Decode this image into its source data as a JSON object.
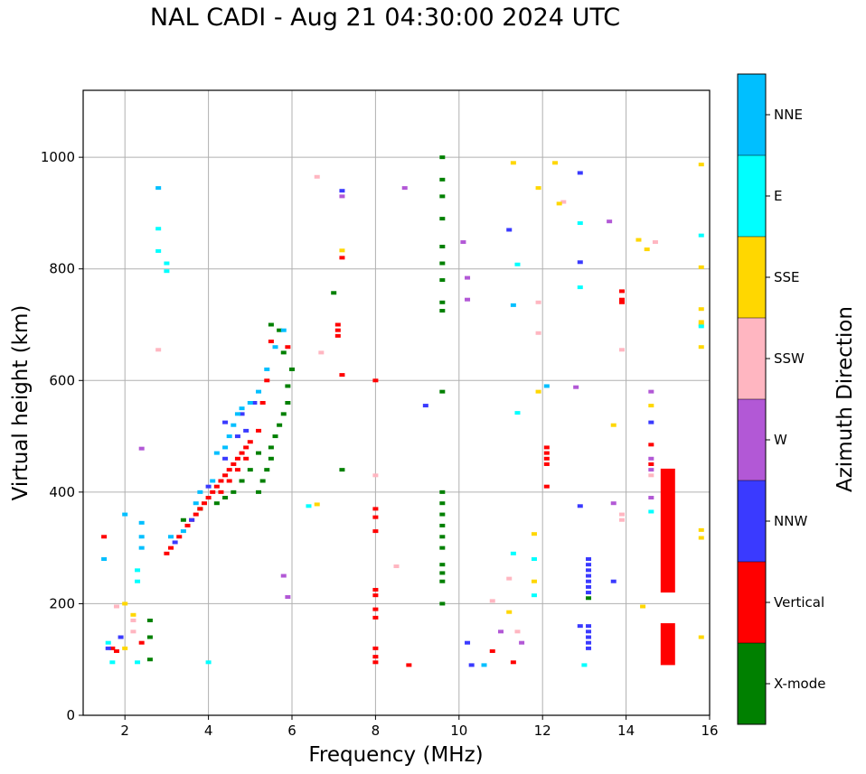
{
  "chart_data": {
    "type": "scatter",
    "title": "NAL CADI - Aug 21 04:30:00 2024 UTC",
    "xlabel": "Frequency (MHz)",
    "ylabel": "Virtual height (km)",
    "xlim": [
      1,
      16
    ],
    "ylim": [
      0,
      1120
    ],
    "xticks": [
      2,
      4,
      6,
      8,
      10,
      12,
      14,
      16
    ],
    "yticks": [
      0,
      200,
      400,
      600,
      800,
      1000
    ],
    "grid": true,
    "colorbar": {
      "label": "Azimuth Direction",
      "categories": [
        "X-mode",
        "Vertical",
        "NNW",
        "W",
        "SSW",
        "SSE",
        "E",
        "NNE"
      ],
      "colors": [
        "#008000",
        "#ff0000",
        "#3a3aff",
        "#b258d6",
        "#ffb6c1",
        "#ffd700",
        "#00ffff",
        "#00bfff"
      ]
    },
    "series": [
      {
        "name": "X-mode",
        "points": [
          [
            2.6,
            100
          ],
          [
            2.6,
            140
          ],
          [
            2.6,
            170
          ],
          [
            5.2,
            400
          ],
          [
            5.3,
            420
          ],
          [
            5.4,
            440
          ],
          [
            5.5,
            460
          ],
          [
            5.5,
            480
          ],
          [
            5.6,
            500
          ],
          [
            5.7,
            520
          ],
          [
            5.8,
            540
          ],
          [
            5.9,
            560
          ],
          [
            5.9,
            590
          ],
          [
            6.0,
            620
          ],
          [
            5.8,
            650
          ],
          [
            5.7,
            690
          ],
          [
            5.5,
            700
          ],
          [
            5.2,
            470
          ],
          [
            5.0,
            440
          ],
          [
            4.8,
            420
          ],
          [
            4.6,
            400
          ],
          [
            4.4,
            390
          ],
          [
            4.2,
            380
          ],
          [
            3.8,
            370
          ],
          [
            3.4,
            350
          ],
          [
            7.0,
            757
          ],
          [
            7.2,
            440
          ],
          [
            9.6,
            1000
          ],
          [
            9.6,
            960
          ],
          [
            9.6,
            930
          ],
          [
            9.6,
            890
          ],
          [
            9.6,
            840
          ],
          [
            9.6,
            810
          ],
          [
            9.6,
            780
          ],
          [
            9.6,
            740
          ],
          [
            9.6,
            725
          ],
          [
            9.6,
            580
          ],
          [
            9.6,
            400
          ],
          [
            9.6,
            380
          ],
          [
            9.6,
            360
          ],
          [
            9.6,
            340
          ],
          [
            9.6,
            320
          ],
          [
            9.6,
            300
          ],
          [
            9.6,
            270
          ],
          [
            9.6,
            255
          ],
          [
            9.6,
            240
          ],
          [
            9.6,
            200
          ],
          [
            13.1,
            210
          ]
        ]
      },
      {
        "name": "Vertical",
        "points": [
          [
            1.5,
            320
          ],
          [
            1.7,
            120
          ],
          [
            1.8,
            115
          ],
          [
            2.4,
            130
          ],
          [
            3.0,
            290
          ],
          [
            3.1,
            300
          ],
          [
            3.3,
            320
          ],
          [
            3.5,
            340
          ],
          [
            3.6,
            350
          ],
          [
            3.7,
            360
          ],
          [
            3.8,
            370
          ],
          [
            3.9,
            380
          ],
          [
            4.0,
            390
          ],
          [
            4.1,
            400
          ],
          [
            4.2,
            410
          ],
          [
            4.3,
            420
          ],
          [
            4.4,
            430
          ],
          [
            4.5,
            440
          ],
          [
            4.6,
            450
          ],
          [
            4.7,
            460
          ],
          [
            4.8,
            470
          ],
          [
            4.9,
            480
          ],
          [
            5.0,
            490
          ],
          [
            4.3,
            400
          ],
          [
            4.5,
            420
          ],
          [
            4.7,
            440
          ],
          [
            4.9,
            460
          ],
          [
            5.2,
            510
          ],
          [
            5.3,
            560
          ],
          [
            5.4,
            600
          ],
          [
            5.5,
            670
          ],
          [
            5.9,
            660
          ],
          [
            7.1,
            700
          ],
          [
            7.1,
            690
          ],
          [
            7.1,
            680
          ],
          [
            7.2,
            610
          ],
          [
            7.2,
            820
          ],
          [
            8.0,
            600
          ],
          [
            8.0,
            370
          ],
          [
            8.0,
            355
          ],
          [
            8.0,
            330
          ],
          [
            8.0,
            225
          ],
          [
            8.0,
            215
          ],
          [
            8.0,
            190
          ],
          [
            8.0,
            175
          ],
          [
            8.0,
            120
          ],
          [
            8.0,
            105
          ],
          [
            8.0,
            95
          ],
          [
            8.8,
            90
          ],
          [
            10.8,
            115
          ],
          [
            11.3,
            95
          ],
          [
            12.1,
            480
          ],
          [
            12.1,
            470
          ],
          [
            12.1,
            460
          ],
          [
            12.1,
            450
          ],
          [
            12.1,
            410
          ],
          [
            13.9,
            760
          ],
          [
            13.9,
            745
          ],
          [
            13.9,
            740
          ],
          [
            14.6,
            450
          ],
          [
            14.6,
            485
          ]
        ]
      },
      {
        "name": "NNW",
        "points": [
          [
            1.6,
            120
          ],
          [
            1.9,
            140
          ],
          [
            3.2,
            310
          ],
          [
            3.6,
            350
          ],
          [
            4.0,
            410
          ],
          [
            4.4,
            460
          ],
          [
            4.7,
            500
          ],
          [
            4.9,
            510
          ],
          [
            5.1,
            560
          ],
          [
            4.4,
            525
          ],
          [
            4.8,
            540
          ],
          [
            7.2,
            940
          ],
          [
            9.2,
            555
          ],
          [
            10.2,
            130
          ],
          [
            10.3,
            90
          ],
          [
            11.2,
            870
          ],
          [
            12.9,
            972
          ],
          [
            12.9,
            812
          ],
          [
            12.9,
            375
          ],
          [
            12.9,
            160
          ],
          [
            13.1,
            280
          ],
          [
            13.1,
            270
          ],
          [
            13.1,
            260
          ],
          [
            13.1,
            250
          ],
          [
            13.1,
            240
          ],
          [
            13.1,
            230
          ],
          [
            13.1,
            220
          ],
          [
            13.1,
            160
          ],
          [
            13.1,
            150
          ],
          [
            13.1,
            140
          ],
          [
            13.1,
            130
          ],
          [
            13.1,
            120
          ],
          [
            13.7,
            240
          ],
          [
            14.6,
            525
          ]
        ]
      },
      {
        "name": "W",
        "points": [
          [
            2.4,
            478
          ],
          [
            5.8,
            250
          ],
          [
            5.9,
            212
          ],
          [
            7.2,
            930
          ],
          [
            8.7,
            945
          ],
          [
            10.1,
            848
          ],
          [
            10.2,
            784
          ],
          [
            10.2,
            745
          ],
          [
            11.0,
            150
          ],
          [
            11.5,
            130
          ],
          [
            12.8,
            588
          ],
          [
            13.6,
            885
          ],
          [
            13.7,
            380
          ],
          [
            14.6,
            580
          ],
          [
            14.6,
            460
          ],
          [
            14.6,
            440
          ],
          [
            14.6,
            390
          ]
        ]
      },
      {
        "name": "SSW",
        "points": [
          [
            1.8,
            195
          ],
          [
            2.2,
            170
          ],
          [
            2.2,
            150
          ],
          [
            2.8,
            655
          ],
          [
            6.6,
            965
          ],
          [
            6.7,
            650
          ],
          [
            8.0,
            430
          ],
          [
            8.5,
            267
          ],
          [
            10.8,
            205
          ],
          [
            11.2,
            245
          ],
          [
            11.4,
            150
          ],
          [
            11.9,
            685
          ],
          [
            11.9,
            740
          ],
          [
            12.5,
            920
          ],
          [
            13.9,
            655
          ],
          [
            13.9,
            360
          ],
          [
            13.9,
            350
          ],
          [
            14.6,
            430
          ],
          [
            14.7,
            848
          ]
        ]
      },
      {
        "name": "SSE",
        "points": [
          [
            2.0,
            200
          ],
          [
            2.0,
            120
          ],
          [
            2.2,
            180
          ],
          [
            6.6,
            378
          ],
          [
            7.2,
            833
          ],
          [
            11.3,
            990
          ],
          [
            11.9,
            945
          ],
          [
            11.9,
            580
          ],
          [
            12.3,
            990
          ],
          [
            12.4,
            917
          ],
          [
            13.7,
            520
          ],
          [
            14.3,
            852
          ],
          [
            14.5,
            835
          ],
          [
            14.6,
            555
          ],
          [
            15.8,
            987
          ],
          [
            15.8,
            803
          ],
          [
            15.8,
            728
          ],
          [
            15.8,
            705
          ],
          [
            15.8,
            700
          ],
          [
            15.8,
            660
          ],
          [
            15.8,
            332
          ],
          [
            15.8,
            318
          ],
          [
            15.8,
            140
          ],
          [
            11.2,
            185
          ],
          [
            11.8,
            325
          ],
          [
            11.8,
            240
          ],
          [
            14.4,
            195
          ]
        ]
      },
      {
        "name": "E",
        "points": [
          [
            1.6,
            130
          ],
          [
            1.7,
            95
          ],
          [
            2.3,
            95
          ],
          [
            2.3,
            240
          ],
          [
            2.3,
            260
          ],
          [
            2.8,
            872
          ],
          [
            2.8,
            832
          ],
          [
            3.0,
            810
          ],
          [
            3.0,
            796
          ],
          [
            4.0,
            95
          ],
          [
            6.4,
            375
          ],
          [
            11.3,
            290
          ],
          [
            11.4,
            808
          ],
          [
            11.4,
            542
          ],
          [
            11.8,
            280
          ],
          [
            11.8,
            215
          ],
          [
            12.9,
            882
          ],
          [
            12.9,
            767
          ],
          [
            13.0,
            90
          ],
          [
            14.6,
            365
          ],
          [
            15.8,
            860
          ],
          [
            15.8,
            697
          ]
        ]
      },
      {
        "name": "NNE",
        "points": [
          [
            1.5,
            280
          ],
          [
            2.0,
            360
          ],
          [
            2.4,
            345
          ],
          [
            2.4,
            320
          ],
          [
            2.4,
            300
          ],
          [
            2.8,
            945
          ],
          [
            3.1,
            320
          ],
          [
            3.4,
            330
          ],
          [
            3.7,
            380
          ],
          [
            3.8,
            400
          ],
          [
            4.1,
            420
          ],
          [
            4.2,
            470
          ],
          [
            4.4,
            480
          ],
          [
            4.6,
            520
          ],
          [
            4.8,
            550
          ],
          [
            5.0,
            560
          ],
          [
            5.2,
            580
          ],
          [
            5.4,
            620
          ],
          [
            5.6,
            660
          ],
          [
            5.8,
            690
          ],
          [
            4.5,
            500
          ],
          [
            4.7,
            540
          ],
          [
            10.6,
            90
          ],
          [
            11.3,
            735
          ],
          [
            12.1,
            590
          ]
        ]
      }
    ],
    "bars": [
      {
        "name": "Vertical",
        "x": 15.0,
        "y0": 220,
        "y1": 442
      },
      {
        "name": "Vertical",
        "x": 15.0,
        "y0": 90,
        "y1": 165
      }
    ]
  }
}
